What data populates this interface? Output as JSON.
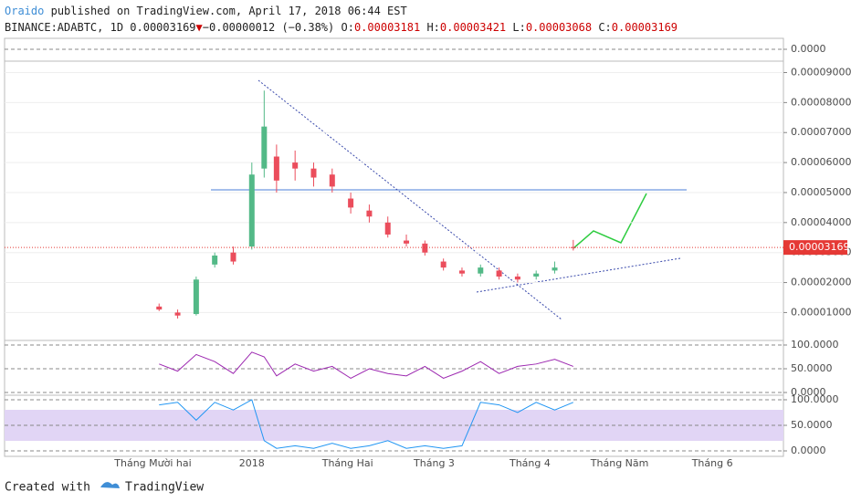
{
  "header": {
    "publisher": "Oraido",
    "published": "published on TradingView.com, April 17, 2018 06:44 EST",
    "symbol": "BINANCE:ADABTC, 1D",
    "arrow": "▼",
    "change": "−0.00000012 (−0.38%)",
    "o_label": "O:",
    "h_label": "H:",
    "l_label": "L:",
    "c_label": "C:"
  },
  "footer": {
    "created": "Created with",
    "brand": "TradingView"
  },
  "chart_data": [
    {
      "type": "candlestick",
      "up_color": "#53b987",
      "down_color": "#eb4d5c",
      "x": [
        50,
        56,
        62,
        68,
        74,
        80,
        84,
        88,
        94,
        100,
        106,
        112,
        118,
        124,
        130,
        136,
        142,
        148,
        154,
        160,
        166,
        172,
        178,
        184
      ],
      "open": [
        1.2e-05,
        1e-05,
        9.5e-06,
        2.6e-05,
        3e-05,
        3.2e-05,
        5.8e-05,
        6.2e-05,
        6e-05,
        5.8e-05,
        5.6e-05,
        4.8e-05,
        4.4e-05,
        4e-05,
        3.4e-05,
        3.3e-05,
        2.7e-05,
        2.4e-05,
        2.3e-05,
        2.4e-05,
        2.2e-05,
        2.2e-05,
        2.4e-05,
        3.181e-05
      ],
      "high": [
        1.3e-05,
        1.1e-05,
        2.2e-05,
        3e-05,
        3.2e-05,
        6e-05,
        8.4e-05,
        6.6e-05,
        6.4e-05,
        6e-05,
        5.8e-05,
        5e-05,
        4.6e-05,
        4.2e-05,
        3.6e-05,
        3.4e-05,
        2.8e-05,
        2.5e-05,
        2.6e-05,
        2.5e-05,
        2.3e-05,
        2.4e-05,
        2.7e-05,
        3.421e-05
      ],
      "low": [
        1.05e-05,
        8e-06,
        9e-06,
        2.5e-05,
        2.6e-05,
        3.1e-05,
        5.5e-05,
        5e-05,
        5.4e-05,
        5.2e-05,
        5e-05,
        4.3e-05,
        4e-05,
        3.5e-05,
        3.2e-05,
        2.9e-05,
        2.4e-05,
        2.2e-05,
        2.2e-05,
        2.1e-05,
        2e-05,
        2.1e-05,
        2.3e-05,
        3.068e-05
      ],
      "close": [
        1.1e-05,
        9e-06,
        2.1e-05,
        2.9e-05,
        2.7e-05,
        5.6e-05,
        7.2e-05,
        5.4e-05,
        5.8e-05,
        5.5e-05,
        5.2e-05,
        4.5e-05,
        4.2e-05,
        3.6e-05,
        3.3e-05,
        3e-05,
        2.5e-05,
        2.3e-05,
        2.5e-05,
        2.2e-05,
        2.1e-05,
        2.3e-05,
        2.5e-05,
        3.169e-05
      ],
      "xlim": [
        0,
        252
      ],
      "xticks": [
        {
          "value": 48,
          "label": "Tháng Mười hai"
        },
        {
          "value": 80,
          "label": "2018"
        },
        {
          "value": 111,
          "label": "Tháng Hai"
        },
        {
          "value": 139,
          "label": "Tháng 3"
        },
        {
          "value": 170,
          "label": "Tháng 4"
        },
        {
          "value": 199,
          "label": "Tháng Năm"
        },
        {
          "value": 229,
          "label": "Tháng 6"
        }
      ],
      "ylim": [
        1e-06,
        9.35e-05
      ],
      "yticks": [
        {
          "value": 1e-05,
          "label": "0.00001000"
        },
        {
          "value": 2e-05,
          "label": "0.00002000"
        },
        {
          "value": 3e-05,
          "label": "0.00003000"
        },
        {
          "value": 4e-05,
          "label": "0.00004000"
        },
        {
          "value": 5e-05,
          "label": "0.00005000"
        },
        {
          "value": 6e-05,
          "label": "0.00006000"
        },
        {
          "value": 7e-05,
          "label": "0.00007000"
        },
        {
          "value": 8e-05,
          "label": "0.00008000"
        },
        {
          "value": 9e-05,
          "label": "0.00009000"
        }
      ]
    },
    {
      "type": "line",
      "color": "#9c27b0",
      "x": [
        50,
        56,
        62,
        68,
        74,
        80,
        84,
        88,
        94,
        100,
        106,
        112,
        118,
        124,
        130,
        136,
        142,
        148,
        154,
        160,
        166,
        172,
        178,
        184
      ],
      "values": [
        60,
        45,
        80,
        65,
        40,
        85,
        75,
        35,
        60,
        45,
        55,
        30,
        50,
        40,
        35,
        55,
        30,
        45,
        65,
        40,
        55,
        60,
        70,
        55
      ],
      "ylim": [
        -3.8,
        107.7
      ],
      "yticks": [
        {
          "value": 0,
          "label": "0.0000"
        },
        {
          "value": 50,
          "label": "50.0000"
        },
        {
          "value": 100,
          "label": "100.0000"
        }
      ]
    },
    {
      "type": "line",
      "color": "#2196f3",
      "x": [
        50,
        56,
        62,
        68,
        74,
        80,
        84,
        88,
        94,
        100,
        106,
        112,
        118,
        124,
        130,
        136,
        142,
        148,
        154,
        160,
        166,
        172,
        178,
        184
      ],
      "values": [
        90,
        95,
        60,
        95,
        80,
        100,
        20,
        5,
        10,
        5,
        15,
        5,
        10,
        20,
        5,
        10,
        5,
        10,
        95,
        90,
        75,
        95,
        80,
        95
      ],
      "ylim": [
        -10.7,
        107.1
      ],
      "yticks": [
        {
          "value": 0,
          "label": "0.0000"
        },
        {
          "value": 50,
          "label": "50.0000"
        },
        {
          "value": 100,
          "label": "100.0000"
        }
      ]
    },
    {
      "type": "line",
      "ylim": [
        -1,
        1
      ],
      "yticks": [
        {
          "value": 0,
          "label": "0.0000"
        }
      ]
    }
  ]
}
